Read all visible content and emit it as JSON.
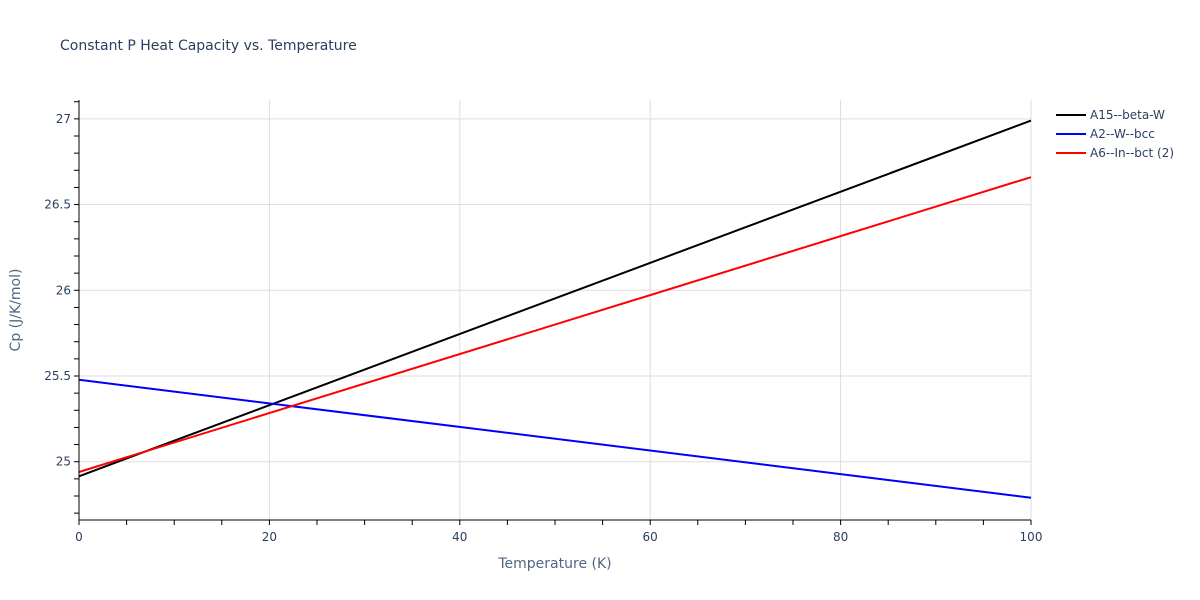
{
  "chart_data": {
    "type": "line",
    "title": "Constant P Heat Capacity vs. Temperature",
    "xlabel": "Temperature (K)",
    "ylabel": "Cp (J/K/mol)",
    "xlim": [
      0,
      100
    ],
    "ylim": [
      24.66,
      27.11
    ],
    "x_ticks": [
      0,
      20,
      40,
      60,
      80,
      100
    ],
    "x_tick_labels": [
      "0",
      "20",
      "40",
      "60",
      "80",
      "100"
    ],
    "y_ticks": [
      25,
      25.5,
      26,
      26.5,
      27
    ],
    "y_tick_labels": [
      "25",
      "25.5",
      "26",
      "26.5",
      "27"
    ],
    "grid": true,
    "legend_position": "top-right-outside",
    "x": [
      0,
      100
    ],
    "series": [
      {
        "name": "A15--beta-W",
        "color": "#000000",
        "values": [
          24.915,
          26.99
        ]
      },
      {
        "name": "A2--W--bcc",
        "color": "#0000ff",
        "values": [
          25.478,
          24.79
        ]
      },
      {
        "name": "A6--In--bct (2)",
        "color": "#ff0000",
        "values": [
          24.94,
          26.66
        ]
      }
    ]
  },
  "legend": {
    "items": [
      {
        "label": "A15--beta-W",
        "color": "#000000"
      },
      {
        "label": "A2--W--bcc",
        "color": "#0000ff"
      },
      {
        "label": "A6--In--bct (2)",
        "color": "#ff0000"
      }
    ]
  }
}
